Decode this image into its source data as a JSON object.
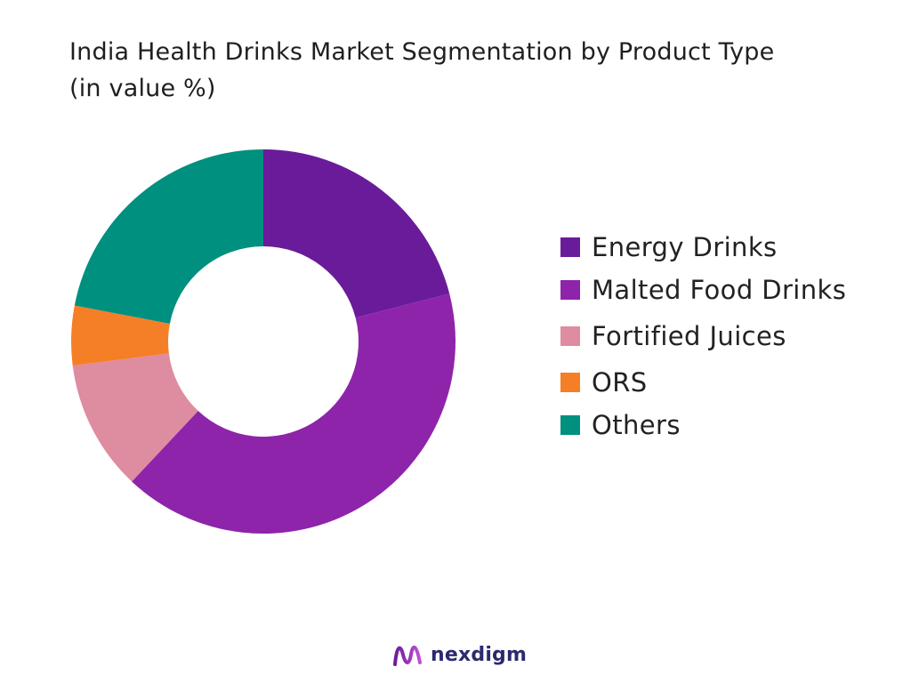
{
  "chart_data": {
    "type": "pie",
    "style": "donut",
    "title_lines": [
      "India Health Drinks Market Segmentation by Product Type",
      "(in value %)"
    ],
    "categories": [
      "Energy Drinks",
      "Malted Food Drinks",
      "Fortified Juices",
      "ORS",
      "Others"
    ],
    "values": [
      21,
      41,
      11,
      5,
      22
    ],
    "colors": [
      "#6a1b9a",
      "#8e24aa",
      "#de8ca0",
      "#f57f26",
      "#00907f"
    ],
    "legend_position": "right",
    "start_angle": "top",
    "direction": "clockwise"
  },
  "branding": {
    "name": "nexdigm",
    "logo_icon": "nexdigm-logo-icon",
    "color": "#2b2a6e"
  }
}
